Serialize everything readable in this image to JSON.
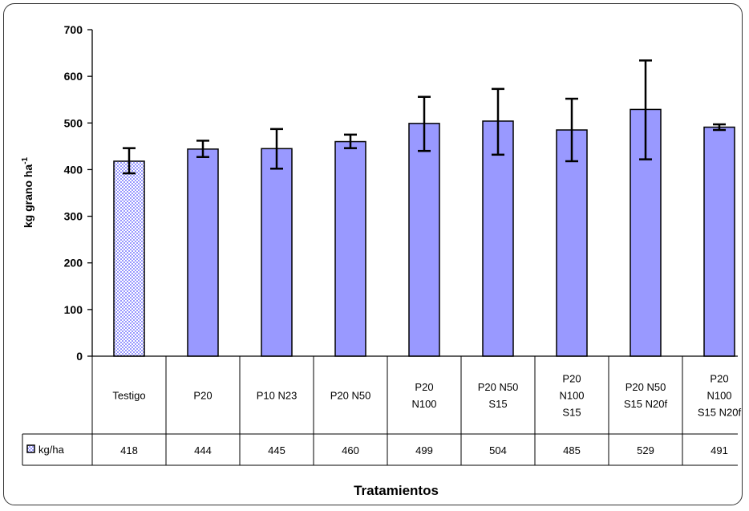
{
  "chart_data": {
    "type": "bar",
    "xlabel": "Tratamientos",
    "ylabel": "kg grano ha",
    "ylabel_sup": "-1",
    "ylim": [
      0,
      700
    ],
    "yticks": [
      0,
      100,
      200,
      300,
      400,
      500,
      600,
      700
    ],
    "categories": [
      [
        "Testigo"
      ],
      [
        "P20"
      ],
      [
        "P10 N23"
      ],
      [
        "P20 N50"
      ],
      [
        "P20",
        "N100"
      ],
      [
        "P20 N50",
        "S15"
      ],
      [
        "P20",
        "N100",
        "S15"
      ],
      [
        "P20 N50",
        "S15 N20f"
      ],
      [
        "P20",
        "N100",
        "S15 N20f"
      ]
    ],
    "series": [
      {
        "name": "kg/ha",
        "values": [
          418,
          444,
          445,
          460,
          499,
          504,
          485,
          529,
          491
        ],
        "value_labels": [
          "418",
          "444",
          "445",
          "460",
          "499",
          "504",
          "485",
          "529",
          "491"
        ],
        "error_low": [
          392,
          427,
          402,
          446,
          440,
          432,
          418,
          422,
          485
        ],
        "error_high": [
          446,
          462,
          487,
          475,
          556,
          573,
          552,
          634,
          497
        ]
      }
    ],
    "colors": {
      "bar": "#9999ff",
      "first_bar_pattern": "#c8c8ff",
      "stroke": "#000000"
    },
    "grid": false,
    "legend": "data-table"
  }
}
